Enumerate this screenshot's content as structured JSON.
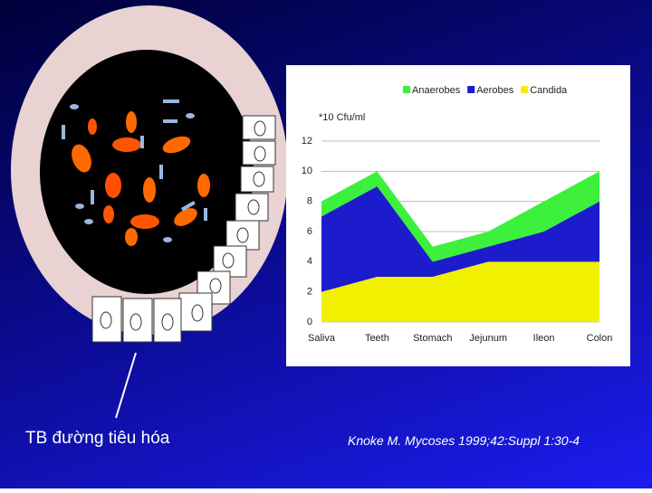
{
  "caption": "TB đường tiêu hóa",
  "citation": "Knoke M. Mycoses  1999;42:Suppl 1:30-4",
  "chart_data": {
    "type": "stacked-area",
    "y_label": "*10 Cfu/ml",
    "categories": [
      "Saliva",
      "Teeth",
      "Stomach",
      "Jejunum",
      "Ileon",
      "Colon"
    ],
    "series": [
      {
        "name": "Anaerobes",
        "color": "#3cf03c",
        "values": [
          1,
          1,
          1,
          1,
          2,
          2
        ]
      },
      {
        "name": "Aerobes",
        "color": "#1c1ccc",
        "values": [
          5,
          6,
          1,
          1,
          2,
          4
        ]
      },
      {
        "name": "Candida",
        "color": "#f0f000",
        "values": [
          2,
          3,
          3,
          4,
          4,
          4
        ]
      }
    ],
    "ylim": [
      0,
      12
    ],
    "yticks": [
      0,
      2,
      4,
      6,
      8,
      10,
      12
    ],
    "grid": true
  }
}
